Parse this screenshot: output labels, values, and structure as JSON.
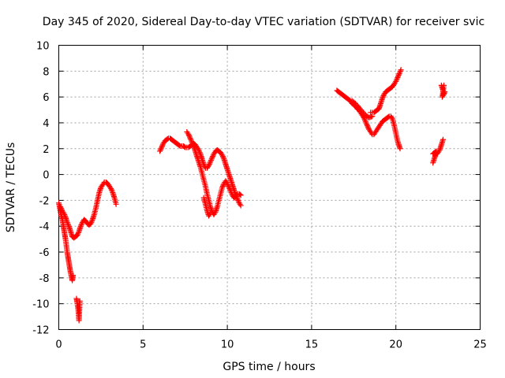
{
  "chart_data": {
    "type": "scatter",
    "title": "Day 345 of 2020, Sidereal Day-to-day VTEC variation (SDTVAR) for receiver svic",
    "xlabel": "GPS time / hours",
    "ylabel": "SDTVAR / TECUs",
    "xlim": [
      0,
      25
    ],
    "ylim": [
      -12,
      10
    ],
    "xticks": [
      "0",
      "5",
      "10",
      "15",
      "20",
      "25"
    ],
    "yticks": [
      "-12",
      "-10",
      "-8",
      "-6",
      "-4",
      "-2",
      "0",
      "2",
      "4",
      "6",
      "8",
      "10"
    ],
    "grid": true,
    "marker": "+",
    "color": "#ff0000",
    "series": [
      {
        "segments": [
          [
            [
              0.0,
              -2.2
            ],
            [
              0.05,
              -2.5
            ],
            [
              0.1,
              -2.9
            ],
            [
              0.15,
              -3.2
            ],
            [
              0.2,
              -3.4
            ],
            [
              0.25,
              -3.8
            ],
            [
              0.3,
              -4.2
            ],
            [
              0.35,
              -4.6
            ],
            [
              0.4,
              -5.0
            ],
            [
              0.45,
              -5.5
            ],
            [
              0.5,
              -6.0
            ],
            [
              0.55,
              -6.4
            ],
            [
              0.6,
              -6.8
            ],
            [
              0.65,
              -7.2
            ],
            [
              0.7,
              -7.6
            ],
            [
              0.75,
              -7.9
            ],
            [
              0.8,
              -8.2
            ],
            [
              0.85,
              -7.8
            ]
          ],
          [
            [
              1.05,
              -9.6
            ],
            [
              1.1,
              -10.0
            ],
            [
              1.15,
              -10.5
            ],
            [
              1.2,
              -11.3
            ],
            [
              1.25,
              -9.8
            ],
            [
              1.2,
              -10.3
            ]
          ],
          [
            [
              0.1,
              -2.5
            ],
            [
              0.2,
              -2.8
            ],
            [
              0.3,
              -3.0
            ],
            [
              0.4,
              -3.3
            ],
            [
              0.5,
              -3.7
            ],
            [
              0.6,
              -4.0
            ],
            [
              0.7,
              -4.4
            ],
            [
              0.8,
              -4.8
            ],
            [
              0.9,
              -4.9
            ],
            [
              1.0,
              -4.8
            ],
            [
              1.1,
              -4.7
            ],
            [
              1.2,
              -4.4
            ],
            [
              1.3,
              -4.0
            ],
            [
              1.4,
              -3.7
            ],
            [
              1.5,
              -3.5
            ],
            [
              1.6,
              -3.6
            ],
            [
              1.7,
              -3.8
            ],
            [
              1.8,
              -3.9
            ],
            [
              1.9,
              -3.8
            ],
            [
              2.0,
              -3.5
            ],
            [
              2.1,
              -3.1
            ],
            [
              2.2,
              -2.6
            ],
            [
              2.3,
              -2.0
            ],
            [
              2.4,
              -1.4
            ],
            [
              2.5,
              -1.0
            ],
            [
              2.6,
              -0.8
            ],
            [
              2.7,
              -0.6
            ],
            [
              2.8,
              -0.6
            ],
            [
              2.9,
              -0.7
            ],
            [
              3.0,
              -0.9
            ],
            [
              3.1,
              -1.1
            ],
            [
              3.2,
              -1.4
            ],
            [
              3.3,
              -1.8
            ],
            [
              3.4,
              -2.3
            ]
          ],
          [
            [
              6.0,
              1.8
            ],
            [
              6.1,
              2.1
            ],
            [
              6.2,
              2.4
            ],
            [
              6.3,
              2.6
            ],
            [
              6.4,
              2.7
            ],
            [
              6.5,
              2.8
            ],
            [
              6.6,
              2.8
            ],
            [
              6.7,
              2.7
            ],
            [
              6.8,
              2.6
            ],
            [
              6.9,
              2.5
            ],
            [
              7.0,
              2.4
            ],
            [
              7.1,
              2.3
            ],
            [
              7.2,
              2.2
            ],
            [
              7.3,
              2.2
            ],
            [
              7.4,
              2.2
            ],
            [
              7.5,
              2.1
            ],
            [
              7.6,
              2.1
            ],
            [
              7.7,
              2.1
            ],
            [
              7.8,
              2.2
            ],
            [
              7.9,
              2.3
            ],
            [
              8.0,
              2.4
            ],
            [
              8.1,
              2.3
            ],
            [
              8.2,
              2.1
            ],
            [
              8.3,
              1.9
            ],
            [
              8.4,
              1.6
            ],
            [
              8.5,
              1.2
            ],
            [
              8.6,
              0.8
            ],
            [
              8.7,
              0.5
            ],
            [
              8.8,
              0.5
            ],
            [
              8.9,
              0.7
            ],
            [
              9.0,
              1.0
            ],
            [
              9.1,
              1.3
            ],
            [
              9.2,
              1.6
            ],
            [
              9.3,
              1.8
            ],
            [
              9.4,
              1.9
            ],
            [
              9.5,
              1.8
            ],
            [
              9.6,
              1.7
            ],
            [
              9.7,
              1.5
            ],
            [
              9.8,
              1.2
            ],
            [
              9.9,
              0.8
            ],
            [
              10.0,
              0.4
            ],
            [
              10.1,
              0.0
            ],
            [
              10.2,
              -0.4
            ],
            [
              10.3,
              -0.8
            ],
            [
              10.4,
              -1.2
            ],
            [
              10.5,
              -1.6
            ],
            [
              10.6,
              -1.9
            ],
            [
              10.7,
              -2.2
            ],
            [
              10.8,
              -2.4
            ]
          ],
          [
            [
              7.6,
              3.3
            ],
            [
              7.7,
              3.1
            ],
            [
              7.8,
              2.8
            ],
            [
              7.9,
              2.5
            ],
            [
              8.0,
              2.2
            ],
            [
              8.1,
              1.8
            ],
            [
              8.2,
              1.4
            ],
            [
              8.3,
              1.0
            ],
            [
              8.4,
              0.6
            ],
            [
              8.5,
              0.1
            ],
            [
              8.6,
              -0.4
            ],
            [
              8.7,
              -0.9
            ],
            [
              8.8,
              -1.5
            ],
            [
              8.9,
              -2.0
            ],
            [
              9.0,
              -2.5
            ],
            [
              9.1,
              -2.9
            ],
            [
              9.2,
              -3.1
            ],
            [
              9.3,
              -2.9
            ],
            [
              9.4,
              -2.5
            ],
            [
              9.5,
              -2.0
            ],
            [
              9.6,
              -1.5
            ],
            [
              9.7,
              -1.0
            ],
            [
              9.8,
              -0.7
            ],
            [
              9.9,
              -0.5
            ],
            [
              10.0,
              -0.7
            ],
            [
              10.1,
              -1.0
            ],
            [
              10.2,
              -1.3
            ],
            [
              10.3,
              -1.6
            ],
            [
              10.4,
              -1.8
            ],
            [
              10.5,
              -1.7
            ],
            [
              10.6,
              -1.5
            ],
            [
              10.7,
              -1.5
            ],
            [
              10.8,
              -1.6
            ]
          ],
          [
            [
              8.6,
              -1.8
            ],
            [
              8.7,
              -2.3
            ],
            [
              8.8,
              -2.8
            ],
            [
              8.9,
              -3.2
            ],
            [
              9.0,
              -3.0
            ]
          ],
          [
            [
              16.5,
              6.5
            ],
            [
              16.6,
              6.4
            ],
            [
              16.7,
              6.3
            ],
            [
              16.8,
              6.2
            ],
            [
              16.9,
              6.1
            ],
            [
              17.0,
              6.0
            ],
            [
              17.1,
              5.9
            ],
            [
              17.2,
              5.8
            ],
            [
              17.3,
              5.7
            ],
            [
              17.4,
              5.5
            ],
            [
              17.5,
              5.4
            ],
            [
              17.6,
              5.3
            ],
            [
              17.7,
              5.1
            ],
            [
              17.8,
              5.0
            ],
            [
              17.9,
              4.8
            ],
            [
              18.0,
              4.6
            ],
            [
              18.1,
              4.4
            ],
            [
              18.2,
              4.1
            ],
            [
              18.3,
              3.8
            ],
            [
              18.4,
              3.5
            ],
            [
              18.5,
              3.3
            ],
            [
              18.6,
              3.1
            ],
            [
              18.7,
              3.1
            ],
            [
              18.8,
              3.3
            ],
            [
              18.9,
              3.5
            ],
            [
              19.0,
              3.7
            ],
            [
              19.1,
              3.9
            ],
            [
              19.2,
              4.1
            ],
            [
              19.3,
              4.2
            ],
            [
              19.4,
              4.3
            ],
            [
              19.5,
              4.4
            ],
            [
              19.6,
              4.5
            ],
            [
              19.7,
              4.5
            ],
            [
              19.8,
              4.3
            ],
            [
              19.9,
              3.8
            ],
            [
              20.0,
              3.2
            ],
            [
              20.1,
              2.6
            ],
            [
              20.2,
              2.2
            ],
            [
              20.25,
              2.0
            ]
          ],
          [
            [
              17.4,
              5.7
            ],
            [
              17.6,
              5.5
            ],
            [
              17.8,
              5.2
            ],
            [
              18.0,
              4.9
            ],
            [
              18.2,
              4.6
            ],
            [
              18.4,
              4.4
            ],
            [
              18.6,
              4.5
            ]
          ],
          [
            [
              18.5,
              4.8
            ],
            [
              18.6,
              4.8
            ],
            [
              18.7,
              4.8
            ],
            [
              18.8,
              4.9
            ],
            [
              18.9,
              5.0
            ],
            [
              19.0,
              5.1
            ],
            [
              19.1,
              5.5
            ],
            [
              19.2,
              5.9
            ],
            [
              19.3,
              6.2
            ],
            [
              19.4,
              6.4
            ],
            [
              19.5,
              6.5
            ],
            [
              19.6,
              6.6
            ],
            [
              19.7,
              6.7
            ],
            [
              19.8,
              6.8
            ],
            [
              19.9,
              7.0
            ],
            [
              20.0,
              7.2
            ],
            [
              20.1,
              7.5
            ],
            [
              20.2,
              7.8
            ],
            [
              20.3,
              8.1
            ]
          ],
          [
            [
              22.2,
              0.9
            ],
            [
              22.25,
              1.1
            ],
            [
              22.3,
              1.3
            ],
            [
              22.35,
              1.5
            ],
            [
              22.4,
              1.6
            ],
            [
              22.45,
              1.6
            ],
            [
              22.5,
              1.7
            ],
            [
              22.55,
              1.8
            ],
            [
              22.6,
              1.9
            ],
            [
              22.65,
              2.1
            ],
            [
              22.7,
              2.3
            ],
            [
              22.75,
              2.5
            ],
            [
              22.8,
              2.7
            ]
          ],
          [
            [
              22.2,
              1.6
            ],
            [
              22.3,
              1.7
            ],
            [
              22.4,
              1.8
            ]
          ],
          [
            [
              22.7,
              6.9
            ],
            [
              22.75,
              6.7
            ],
            [
              22.8,
              6.5
            ],
            [
              22.85,
              6.2
            ],
            [
              22.9,
              6.4
            ],
            [
              22.75,
              6.0
            ],
            [
              22.85,
              6.9
            ]
          ]
        ]
      }
    ]
  }
}
